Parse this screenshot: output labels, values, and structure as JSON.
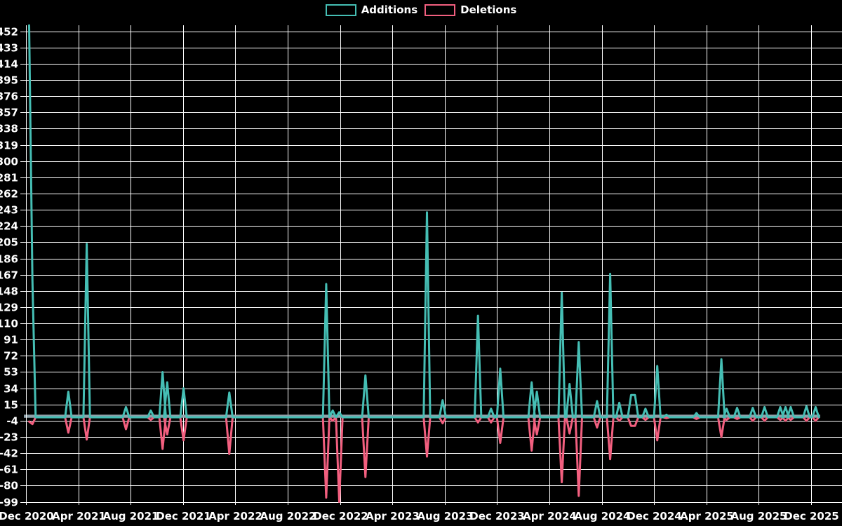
{
  "legend": {
    "additions_label": "Additions",
    "deletions_label": "Deletions"
  },
  "colors": {
    "background": "#000000",
    "grid": "#ffffff",
    "text": "#ffffff",
    "additions": "#45beb4",
    "deletions": "#f25f7f",
    "zero_line": "#8fa2ab"
  },
  "chart_data": {
    "type": "line",
    "title": "",
    "legend_position": "top-center",
    "grid": true,
    "zero_baseline": 0,
    "series_meta": [
      {
        "name": "Additions",
        "color": "#45beb4"
      },
      {
        "name": "Deletions",
        "color": "#f25f7f"
      }
    ],
    "x_axis": {
      "tick_labels": [
        "Dec 2020",
        "Apr 2021",
        "Aug 2021",
        "Dec 2021",
        "Apr 2022",
        "Aug 2022",
        "Dec 2022",
        "Apr 2023",
        "Aug 2023",
        "Dec 2023",
        "Apr 2024",
        "Aug 2024",
        "Dec 2024",
        "Apr 2025",
        "Aug 2025",
        "Dec 2025"
      ],
      "tick_interval_months": 4,
      "range_months": [
        0,
        60.5
      ]
    },
    "y_axis": {
      "ticks": [
        452,
        433,
        414,
        395,
        376,
        357,
        338,
        319,
        300,
        281,
        262,
        243,
        224,
        205,
        186,
        167,
        148,
        129,
        110,
        91,
        72,
        53,
        34,
        15,
        -4,
        -23,
        -42,
        -61,
        -80,
        -99
      ],
      "step": 19,
      "range": [
        -99,
        461
      ]
    },
    "points_by_month": [
      [
        0.0,
        459,
        -5
      ],
      [
        0.25,
        161,
        -8
      ],
      [
        3.0,
        30,
        -18
      ],
      [
        4.4,
        203,
        -26
      ],
      [
        7.4,
        12,
        -14
      ],
      [
        9.3,
        8,
        -3
      ],
      [
        10.2,
        53,
        -37
      ],
      [
        10.55,
        41,
        -20
      ],
      [
        11.8,
        34,
        -27
      ],
      [
        15.3,
        29,
        -43
      ],
      [
        22.7,
        156,
        -94
      ],
      [
        23.2,
        8,
        -4
      ],
      [
        23.7,
        6,
        -99
      ],
      [
        25.7,
        49,
        -70
      ],
      [
        30.4,
        240,
        -46
      ],
      [
        31.6,
        20,
        -7
      ],
      [
        34.3,
        119,
        -6
      ],
      [
        35.3,
        10,
        -6
      ],
      [
        36.0,
        57,
        -30
      ],
      [
        38.4,
        41,
        -39
      ],
      [
        38.8,
        30,
        -20
      ],
      [
        40.7,
        146,
        -76
      ],
      [
        41.3,
        39,
        -19
      ],
      [
        42.0,
        88,
        -92
      ],
      [
        43.4,
        19,
        -12
      ],
      [
        44.4,
        168,
        -49
      ],
      [
        45.1,
        17,
        -4
      ],
      [
        46.0,
        26,
        -10
      ],
      [
        46.3,
        26,
        -10
      ],
      [
        47.1,
        10,
        -3
      ],
      [
        48.0,
        60,
        -27
      ],
      [
        48.7,
        3,
        -1
      ],
      [
        51.0,
        5,
        -2
      ],
      [
        52.9,
        68,
        -23
      ],
      [
        53.3,
        10,
        -3
      ],
      [
        54.1,
        11,
        -2
      ],
      [
        55.3,
        11,
        -4
      ],
      [
        56.2,
        12,
        -4
      ],
      [
        57.4,
        12,
        -3
      ],
      [
        57.8,
        12,
        -4
      ],
      [
        58.2,
        12,
        -3
      ],
      [
        59.4,
        13,
        -4
      ],
      [
        60.1,
        12,
        -4
      ]
    ]
  }
}
